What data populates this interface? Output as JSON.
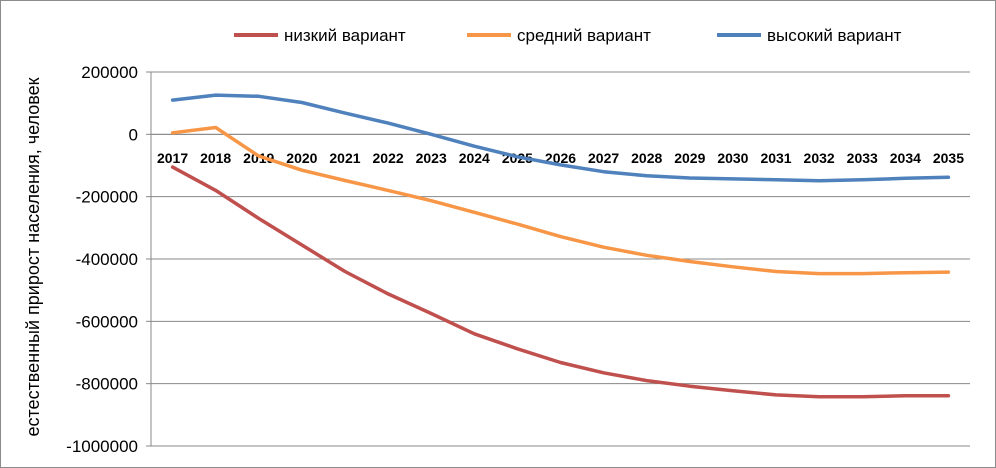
{
  "chart_data": {
    "type": "line",
    "title": "",
    "xlabel": "",
    "ylabel": "естественный прирост населения, человек",
    "ylim": [
      -1000000,
      200000
    ],
    "ytick_step": 200000,
    "y_ticks": [
      "200000",
      "0",
      "-200000",
      "-400000",
      "-600000",
      "-800000",
      "-1000000"
    ],
    "grid": true,
    "legend_position": "top",
    "categories": [
      "2017",
      "2018",
      "2019",
      "2020",
      "2021",
      "2022",
      "2023",
      "2024",
      "2025",
      "2026",
      "2027",
      "2028",
      "2029",
      "2030",
      "2031",
      "2032",
      "2033",
      "2034",
      "2035"
    ],
    "series": [
      {
        "name": "низкий вариант",
        "color": "#c0504d",
        "values": [
          -105000,
          -180000,
          -270000,
          -355000,
          -440000,
          -512000,
          -575000,
          -640000,
          -688000,
          -732000,
          -765000,
          -790000,
          -808000,
          -823000,
          -836000,
          -842000,
          -842000,
          -839000,
          -839000
        ]
      },
      {
        "name": "средний вариант",
        "color": "#f79646",
        "values": [
          5000,
          22000,
          -70000,
          -115000,
          -148000,
          -180000,
          -213000,
          -250000,
          -288000,
          -328000,
          -362000,
          -388000,
          -408000,
          -425000,
          -440000,
          -447000,
          -447000,
          -444000,
          -442000
        ]
      },
      {
        "name": "высокий вариант",
        "color": "#4f81bd",
        "values": [
          110000,
          126000,
          122000,
          102000,
          68000,
          36000,
          0,
          -38000,
          -72000,
          -98000,
          -120000,
          -133000,
          -140000,
          -143000,
          -146000,
          -149000,
          -146000,
          -141000,
          -138000
        ]
      }
    ]
  }
}
